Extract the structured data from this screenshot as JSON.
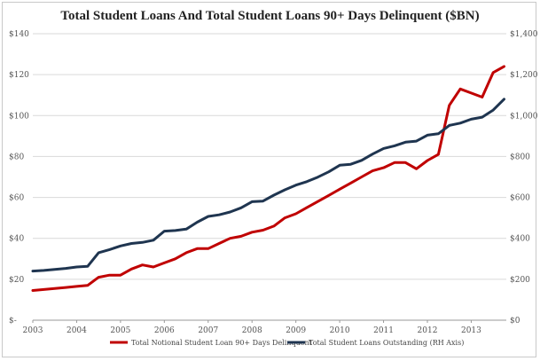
{
  "chart_data": {
    "type": "line",
    "title": "Total Student Loans And Total Student Loans 90+ Days Delinquent ($BN)",
    "xlabel": "",
    "ylabel": "",
    "x_ticks": [
      "2003",
      "2004",
      "2005",
      "2006",
      "2007",
      "2008",
      "2009",
      "2010",
      "2011",
      "2012",
      "2013"
    ],
    "xlim": [
      2003.0,
      2013.8
    ],
    "y_left": {
      "ylim": [
        0,
        140
      ],
      "ticks": [
        0,
        20,
        40,
        60,
        80,
        100,
        120,
        140
      ],
      "tick_labels": [
        "$-",
        "$20",
        "$40",
        "$60",
        "$80",
        "$100",
        "$120",
        "$140"
      ]
    },
    "y_right": {
      "ylim": [
        0,
        1400
      ],
      "ticks": [
        0,
        200,
        400,
        600,
        800,
        1000,
        1200,
        1400
      ],
      "tick_labels": [
        "$0",
        "$200",
        "$400",
        "$600",
        "$800",
        "$1,000",
        "$1,200",
        "$1,400"
      ]
    },
    "grid": true,
    "legend_position": "bottom",
    "series": [
      {
        "name": "Total Notional Student Loan 90+ Days Delinquent",
        "axis": "left",
        "color": "#c00000",
        "x": [
          2003.0,
          2003.25,
          2003.5,
          2003.75,
          2004.0,
          2004.25,
          2004.5,
          2004.75,
          2005.0,
          2005.25,
          2005.5,
          2005.75,
          2006.0,
          2006.25,
          2006.5,
          2006.75,
          2007.0,
          2007.25,
          2007.5,
          2007.75,
          2008.0,
          2008.25,
          2008.5,
          2008.75,
          2009.0,
          2009.25,
          2009.5,
          2009.75,
          2010.0,
          2010.25,
          2010.5,
          2010.75,
          2011.0,
          2011.25,
          2011.5,
          2011.75,
          2012.0,
          2012.25,
          2012.5,
          2012.75,
          2013.0,
          2013.25,
          2013.5,
          2013.75
        ],
        "values": [
          14.5,
          15.0,
          15.5,
          16.0,
          16.5,
          17.0,
          21.0,
          22.0,
          22.0,
          25.0,
          27.0,
          26.0,
          28.0,
          30.0,
          33.0,
          35.0,
          35.0,
          37.5,
          40.0,
          41.0,
          43.0,
          44.0,
          46.0,
          50.0,
          52.0,
          55.0,
          58.0,
          61.0,
          64.0,
          67.0,
          70.0,
          73.0,
          74.5,
          77.0,
          77.0,
          74.0,
          78.0,
          81.0,
          105.0,
          113.0,
          111.0,
          109.0,
          121.0,
          124.0
        ]
      },
      {
        "name": "Total Student Loans Outstanding (RH Axis)",
        "axis": "right",
        "color": "#1f3550",
        "x": [
          2003.0,
          2003.25,
          2003.5,
          2003.75,
          2004.0,
          2004.25,
          2004.5,
          2004.75,
          2005.0,
          2005.25,
          2005.5,
          2005.75,
          2006.0,
          2006.25,
          2006.5,
          2006.75,
          2007.0,
          2007.25,
          2007.5,
          2007.75,
          2008.0,
          2008.25,
          2008.5,
          2008.75,
          2009.0,
          2009.25,
          2009.5,
          2009.75,
          2010.0,
          2010.25,
          2010.5,
          2010.75,
          2011.0,
          2011.25,
          2011.5,
          2011.75,
          2012.0,
          2012.25,
          2012.5,
          2012.75,
          2013.0,
          2013.25,
          2013.5,
          2013.75
        ],
        "values": [
          240,
          243,
          248,
          253,
          260,
          263,
          330,
          345,
          363,
          375,
          380,
          391,
          435,
          438,
          445,
          479,
          507,
          515,
          529,
          549,
          579,
          582,
          611,
          637,
          660,
          677,
          699,
          725,
          757,
          762,
          781,
          812,
          839,
          852,
          870,
          875,
          904,
          911,
          952,
          963,
          982,
          992,
          1027,
          1080
        ]
      }
    ]
  }
}
